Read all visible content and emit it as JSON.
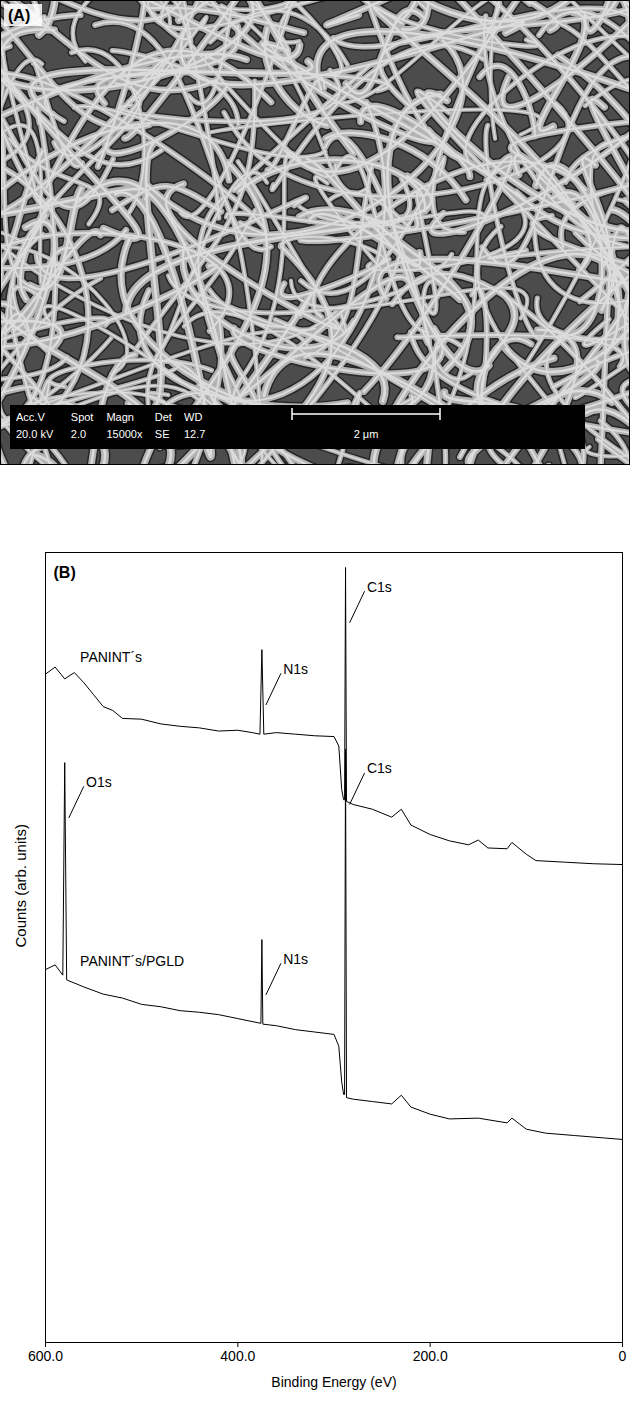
{
  "image_panel": {
    "panel_label": "(A)",
    "info_bar": {
      "fields": [
        {
          "name": "Acc.V",
          "value": "20.0 kV"
        },
        {
          "name": "Spot",
          "value": "2.0"
        },
        {
          "name": "Magn",
          "value": "15000x"
        },
        {
          "name": "Det",
          "value": "SE"
        },
        {
          "name": "WD",
          "value": "12.7"
        }
      ],
      "scale_bar": "2 μm"
    }
  },
  "chart_data": {
    "type": "line",
    "panel_label": "(B)",
    "x_label": "Binding Energy (eV)",
    "y_label": "Counts (arb. units)",
    "xlim": [
      600,
      0
    ],
    "xticks": [
      {
        "value": 600,
        "label": "600.0"
      },
      {
        "value": 400,
        "label": "400.0"
      },
      {
        "value": 200,
        "label": "200.0"
      },
      0
    ],
    "ylim": [
      0,
      100
    ],
    "tick_labels": "x",
    "series": [
      {
        "name": "PANINT´s",
        "color": "#000000",
        "x": [
          600,
          590,
          580,
          570,
          560,
          550,
          540,
          530,
          520,
          500,
          480,
          460,
          440,
          420,
          400,
          385,
          377,
          375,
          373,
          360,
          340,
          320,
          300,
          295,
          292,
          290,
          289,
          288,
          287,
          280,
          260,
          240,
          230,
          220,
          200,
          180,
          160,
          150,
          140,
          120,
          115,
          100,
          90,
          60,
          30,
          0
        ],
        "values": [
          84.6,
          85.5,
          84.0,
          84.8,
          83.5,
          82.0,
          80.5,
          80.0,
          79.0,
          78.9,
          78.3,
          78.0,
          77.8,
          77.4,
          77.5,
          77.2,
          77.0,
          87.7,
          77.0,
          77.2,
          77.0,
          76.8,
          76.7,
          75.5,
          70.0,
          68.7,
          68.7,
          98.1,
          68.5,
          68.1,
          67.5,
          66.5,
          67.5,
          65.5,
          64.3,
          63.5,
          63.0,
          63.6,
          62.6,
          62.5,
          63.3,
          61.8,
          61.0,
          60.8,
          60.6,
          60.5
        ],
        "peak_labels": [
          {
            "label": "N1s",
            "x": 375
          },
          {
            "label": "C1s",
            "x": 288
          }
        ]
      },
      {
        "name": "PANINT´s/PGLD",
        "color": "#000000",
        "x": [
          600,
          590,
          582,
          580,
          578,
          560,
          540,
          520,
          500,
          480,
          460,
          440,
          420,
          400,
          380,
          376,
          375,
          374,
          360,
          340,
          320,
          300,
          295,
          292,
          290,
          289,
          288,
          287,
          280,
          260,
          240,
          230,
          220,
          200,
          180,
          150,
          120,
          115,
          100,
          80,
          50,
          20,
          0
        ],
        "values": [
          47.2,
          47.8,
          46.5,
          73.4,
          45.9,
          45.0,
          44.1,
          43.6,
          42.8,
          42.5,
          42.0,
          41.8,
          41.5,
          41.0,
          40.5,
          40.4,
          51.0,
          40.3,
          40.1,
          39.6,
          39.3,
          39.0,
          37.5,
          33.0,
          31.4,
          31.4,
          75.1,
          31.0,
          30.8,
          30.5,
          30.2,
          31.3,
          29.8,
          28.9,
          28.3,
          28.4,
          27.8,
          28.4,
          27.0,
          26.5,
          26.2,
          25.9,
          25.7
        ],
        "peak_labels": [
          {
            "label": "O1s",
            "x": 580
          },
          {
            "label": "N1s",
            "x": 375
          },
          {
            "label": "C1s",
            "x": 288
          }
        ]
      }
    ]
  }
}
